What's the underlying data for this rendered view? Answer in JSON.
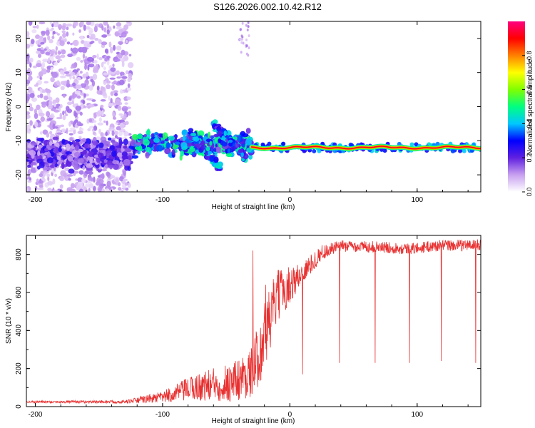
{
  "figure": {
    "title": "S126.2026.002.10.42.R12"
  },
  "colors": {
    "line": "#e83030",
    "axis": "#000000",
    "background": "#ffffff"
  },
  "chart_data": [
    {
      "type": "heatmap",
      "xlabel": "Height of straight line (km)",
      "ylabel": "Frequency (Hz)",
      "xlim": [
        -207,
        150
      ],
      "ylim": [
        -25,
        25
      ],
      "xticks": [
        -200,
        -100,
        0,
        100
      ],
      "yticks": [
        -20,
        -10,
        0,
        10,
        20
      ],
      "colorbar": {
        "label": "Normalized spectral amplitude",
        "range": [
          0,
          1
        ],
        "ticks": [
          0.0,
          0.2,
          0.4,
          0.6,
          0.8
        ],
        "colormap": [
          "#ffffff",
          "#c8a0f0",
          "#6020e0",
          "#0000ff",
          "#00c8ff",
          "#00ff80",
          "#80ff00",
          "#ffff00",
          "#ff8000",
          "#ff0000",
          "#ff0080"
        ]
      },
      "features": [
        {
          "name": "noise",
          "x_range": [
            -207,
            -125
          ],
          "y_range": [
            -25,
            25
          ],
          "amplitude": 0.08
        },
        {
          "name": "band_left",
          "x_range": [
            -207,
            -125
          ],
          "y_center": -14,
          "y_width": 5,
          "amplitude": 0.15
        },
        {
          "name": "band_middle",
          "x_range": [
            -125,
            -30
          ],
          "y_center": -11,
          "y_width": 4,
          "amplitude": 0.3
        },
        {
          "name": "streak_1",
          "x_start": -80,
          "y_start": -7,
          "x_end": -55,
          "y_end": -18,
          "amplitude": 0.25
        },
        {
          "name": "streak_2",
          "x_start": -60,
          "y_start": -5,
          "x_end": -35,
          "y_end": -15,
          "amplitude": 0.25
        },
        {
          "name": "top_wisp",
          "x_range": [
            -40,
            -32
          ],
          "y_range": [
            15,
            25
          ],
          "amplitude": 0.08
        },
        {
          "name": "carrier",
          "x_range": [
            -30,
            150
          ],
          "y_center": -12,
          "y_width": 2,
          "amplitude": 0.9
        }
      ]
    },
    {
      "type": "line",
      "xlabel": "Height of straight line (km)",
      "ylabel": "SNR (10 * v/v)",
      "xlim": [
        -207,
        150
      ],
      "ylim": [
        0,
        900
      ],
      "xticks": [
        -200,
        -100,
        0,
        100
      ],
      "yticks": [
        0,
        200,
        400,
        600,
        800
      ],
      "series": [
        {
          "name": "SNR",
          "color": "#e83030",
          "breakpoints": [
            {
              "x": -207,
              "y": 25,
              "noise": 6
            },
            {
              "x": -130,
              "y": 25,
              "noise": 8
            },
            {
              "x": -100,
              "y": 50,
              "noise": 30
            },
            {
              "x": -75,
              "y": 100,
              "noise": 70
            },
            {
              "x": -45,
              "y": 130,
              "noise": 110
            },
            {
              "x": -30,
              "y": 180,
              "noise": 130
            },
            {
              "x": -20,
              "y": 360,
              "noise": 200
            },
            {
              "x": -10,
              "y": 580,
              "noise": 140
            },
            {
              "x": 10,
              "y": 700,
              "noise": 60
            },
            {
              "x": 25,
              "y": 810,
              "noise": 40
            },
            {
              "x": 40,
              "y": 845,
              "noise": 30
            },
            {
              "x": 65,
              "y": 840,
              "noise": 30
            },
            {
              "x": 95,
              "y": 830,
              "noise": 30
            },
            {
              "x": 115,
              "y": 845,
              "noise": 30
            },
            {
              "x": 150,
              "y": 850,
              "noise": 30
            }
          ],
          "dips": [
            {
              "x": 10,
              "y": 170
            },
            {
              "x": 39,
              "y": 230
            },
            {
              "x": 67,
              "y": 230
            },
            {
              "x": 94,
              "y": 230
            },
            {
              "x": 119,
              "y": 240
            },
            {
              "x": 146,
              "y": 230
            }
          ],
          "spikes": [
            {
              "x": -29,
              "y": 820
            },
            {
              "x": -19,
              "y": 640
            }
          ]
        }
      ]
    }
  ]
}
